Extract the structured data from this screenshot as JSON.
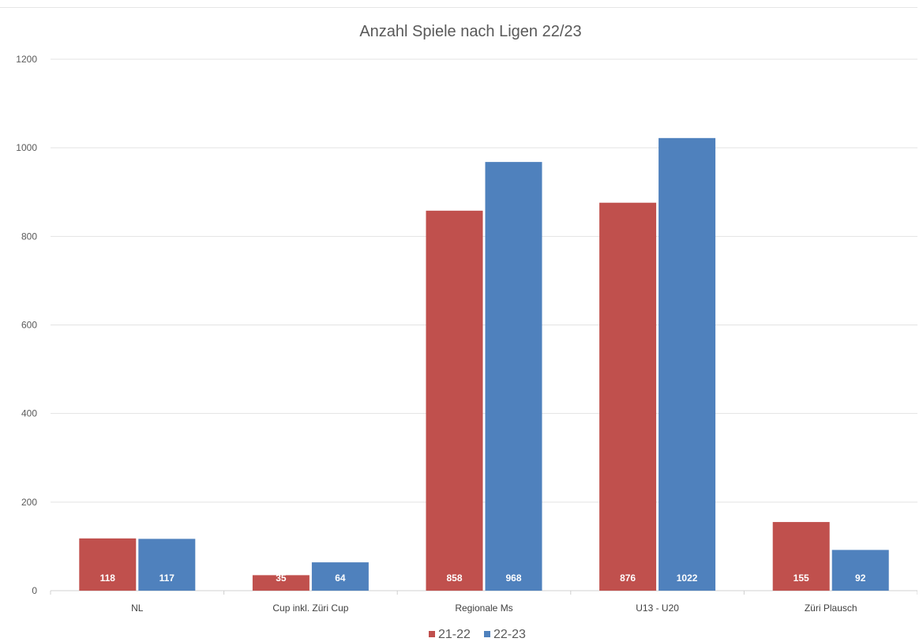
{
  "chart_data": {
    "type": "bar",
    "title": "Anzahl Spiele nach Ligen 22/23",
    "categories": [
      "NL",
      "Cup inkl. Züri Cup",
      "Regionale Ms",
      "U13 - U20",
      "Züri Plausch"
    ],
    "series": [
      {
        "name": "21-22",
        "values": [
          118,
          35,
          858,
          876,
          155
        ],
        "color": "#c0504d"
      },
      {
        "name": "22-23",
        "values": [
          117,
          64,
          968,
          1022,
          92
        ],
        "color": "#4f81bd"
      }
    ],
    "ylim": [
      0,
      1200
    ],
    "yticks": [
      0,
      200,
      400,
      600,
      800,
      1000,
      1200
    ],
    "grid": true,
    "legend_position": "bottom"
  }
}
